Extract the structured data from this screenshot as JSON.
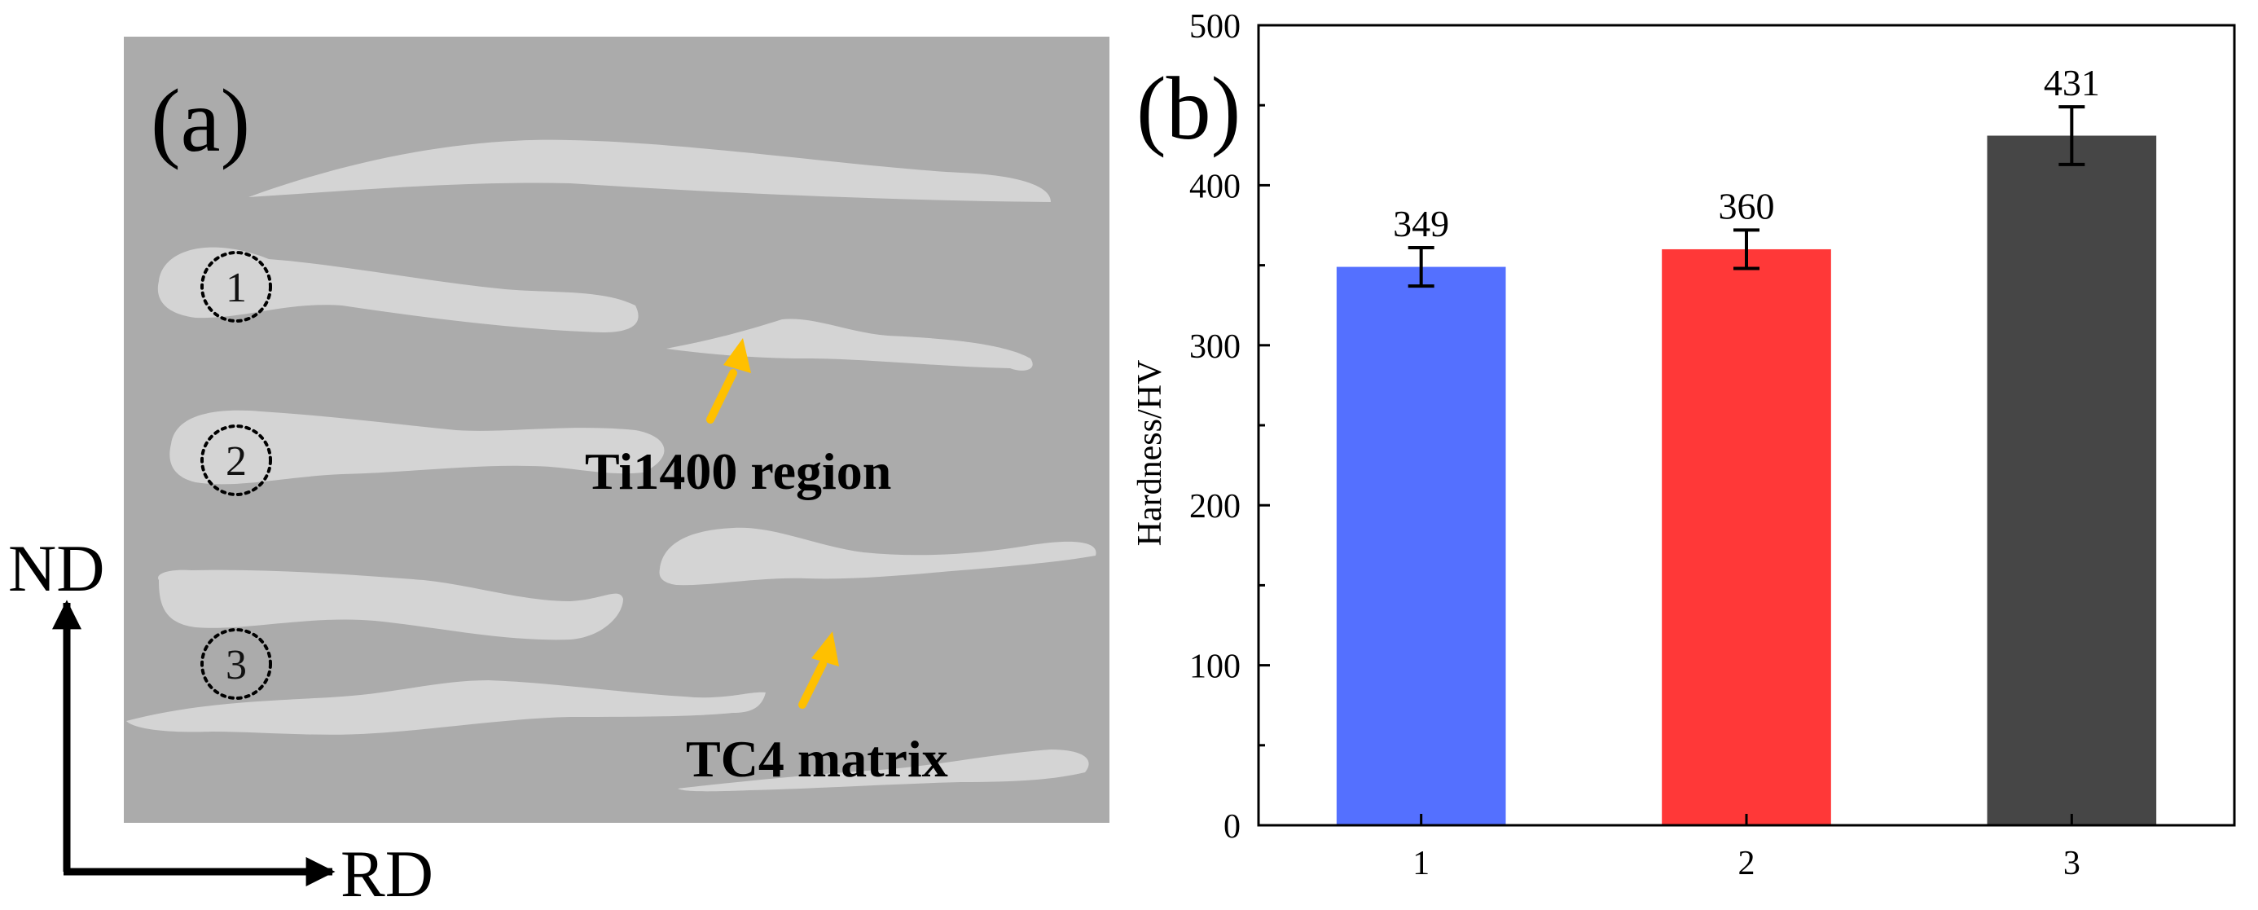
{
  "panel_a": {
    "label": "(a)",
    "points": [
      "1",
      "2",
      "3"
    ],
    "annotations": {
      "ti1400": "Ti1400 region",
      "tc4": "TC4 matrix"
    },
    "axes": {
      "vertical": "ND",
      "horizontal": "RD"
    },
    "colors": {
      "matrix": "#ababab",
      "region": "#d4d4d4",
      "arrow": "#ffc000"
    }
  },
  "panel_b": {
    "label": "(b)"
  },
  "chart_data": {
    "type": "bar",
    "title": "",
    "xlabel": "",
    "ylabel": "Hardness/HV",
    "categories": [
      "1",
      "2",
      "3"
    ],
    "values": [
      349,
      360,
      431
    ],
    "errors": [
      12,
      12,
      18
    ],
    "value_labels": [
      "349",
      "360",
      "431"
    ],
    "ylim": [
      0,
      500
    ],
    "yticks": [
      0,
      100,
      200,
      300,
      400,
      500
    ],
    "ytick_labels": [
      "0",
      "100",
      "200",
      "300",
      "400",
      "500"
    ],
    "colors": [
      "#5470ff",
      "#ff3838",
      "#464646"
    ],
    "grid": false
  }
}
